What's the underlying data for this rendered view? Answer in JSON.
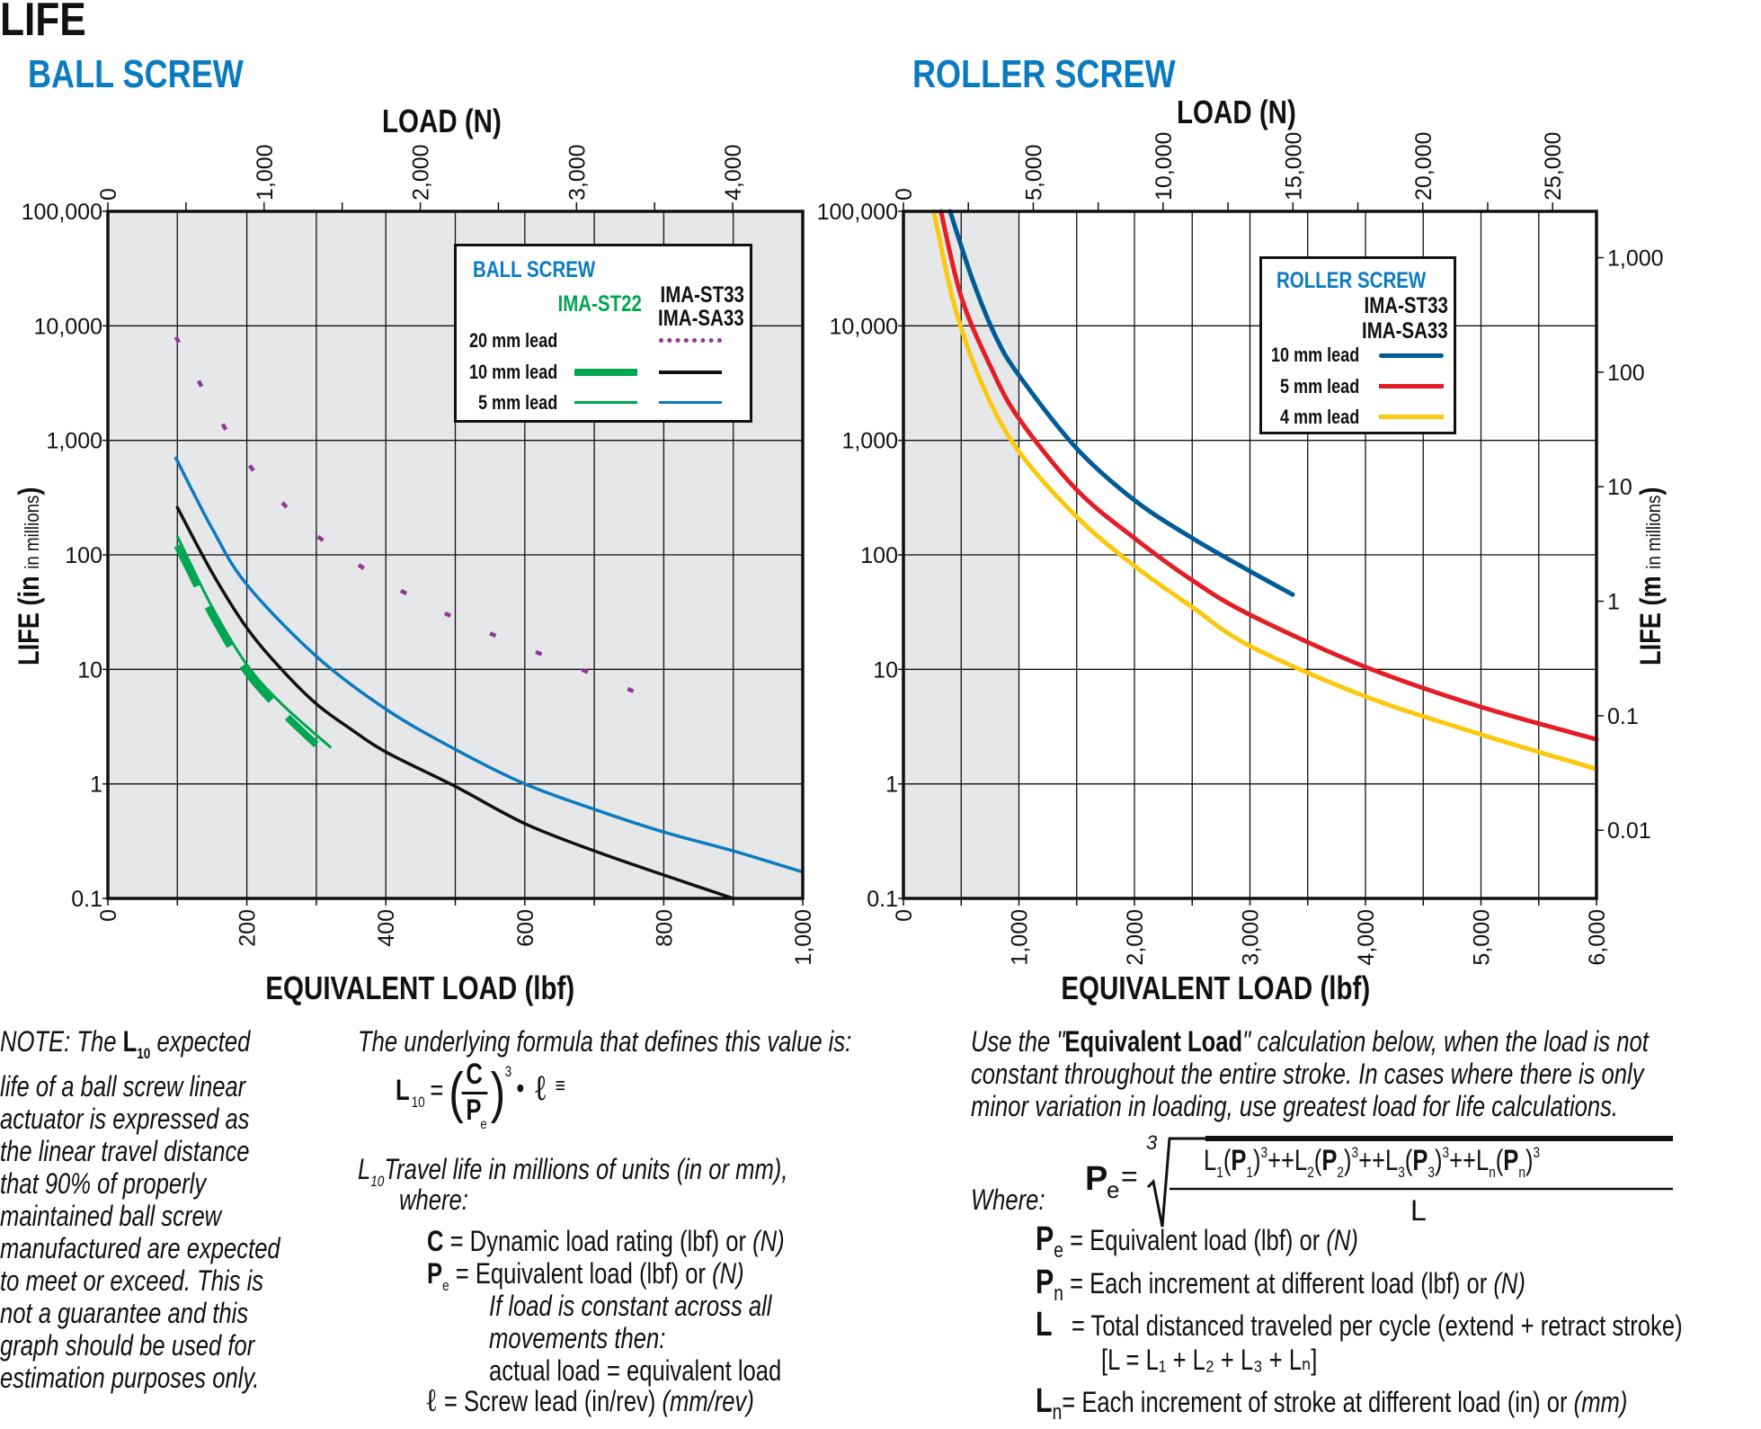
{
  "page_title": "LIFE",
  "sections": {
    "ball": "BALL SCREW",
    "roller": "ROLLER SCREW"
  },
  "axes": {
    "top_title": "LOAD (N)",
    "bottom_title": "EQUIVALENT LOAD (lbf)",
    "left_ylabel_main": "LIFE (in ",
    "left_ylabel_small": "in millions",
    "right_ylabel_main": "LIFE (m ",
    "right_ylabel_small": "in millions",
    "close_paren": ")"
  },
  "chart_data": [
    {
      "type": "line",
      "title": "BALL SCREW",
      "xlabel": "EQUIVALENT LOAD (lbf)",
      "x2label": "LOAD (N)",
      "ylabel": "LIFE (in in millions)",
      "xlim": [
        0,
        1000
      ],
      "ylim": [
        0.1,
        100000
      ],
      "yscale": "log",
      "grid": true,
      "x_ticks": [
        "0",
        "200",
        "400",
        "600",
        "800",
        "1,000"
      ],
      "x_tick_values": [
        0,
        200,
        400,
        600,
        800,
        1000
      ],
      "x2_ticks": [
        "0",
        "1,000",
        "2,000",
        "3,000",
        "4,000"
      ],
      "x2_tick_values": [
        0,
        1000,
        2000,
        3000,
        4000
      ],
      "y_ticks": [
        "0.1",
        "1",
        "10",
        "100",
        "1,000",
        "10,000",
        "100,000"
      ],
      "y_tick_values": [
        0.1,
        1,
        10,
        100,
        1000,
        10000,
        100000
      ],
      "legend": {
        "title": "BALL SCREW",
        "col1": "IMA-ST22",
        "col2a": "IMA-ST33",
        "col2b": "IMA-SA33",
        "rows": [
          "20 mm lead",
          "10 mm lead",
          "5 mm lead"
        ],
        "placement": "top-right"
      },
      "series": [
        {
          "name": "IMA-ST33/SA33 20 mm lead",
          "color": "#8e3a96",
          "style": "dotted",
          "x": [
            98,
            150,
            200,
            250,
            300,
            400,
            500,
            600,
            700,
            779
          ],
          "y": [
            8000,
            2000,
            650,
            290,
            148,
            58,
            28,
            15.5,
            9,
            5.6
          ]
        },
        {
          "name": "IMA-ST33/SA33 10 mm lead",
          "color": "#111111",
          "style": "solid",
          "x": [
            100,
            150,
            200,
            250,
            300,
            350,
            400,
            500,
            600,
            700,
            800,
            900
          ],
          "y": [
            260,
            70,
            23,
            10,
            5,
            3,
            1.9,
            0.95,
            0.45,
            0.26,
            0.16,
            0.1
          ]
        },
        {
          "name": "IMA-ST33/SA33 5 mm lead",
          "color": "#0a7bc1",
          "style": "solid",
          "x": [
            98,
            150,
            200,
            300,
            400,
            500,
            600,
            700,
            800,
            900,
            1000
          ],
          "y": [
            700,
            170,
            55,
            13,
            4.5,
            2,
            1,
            0.6,
            0.38,
            0.26,
            0.17
          ]
        },
        {
          "name": "IMA-ST22 5 mm lead",
          "color": "#00a651",
          "style": "solid",
          "x": [
            100,
            150,
            200,
            250,
            320
          ],
          "y": [
            145,
            35,
            11,
            5,
            2.1
          ]
        },
        {
          "name": "IMA-ST22 10 mm lead",
          "color": "#00a651",
          "style": "thick-dashed",
          "x": [
            100,
            150,
            200,
            250,
            300
          ],
          "y": [
            120,
            30,
            9.5,
            4.3,
            2.2
          ]
        }
      ]
    },
    {
      "type": "line",
      "title": "ROLLER SCREW",
      "xlabel": "EQUIVALENT LOAD (lbf)",
      "x2label": "LOAD (N)",
      "ylabel": "LIFE (in in millions)",
      "y2label": "LIFE (m in millions)",
      "xlim": [
        0,
        6000
      ],
      "ylim": [
        0.1,
        100000
      ],
      "yscale": "log",
      "grid": true,
      "shaded_region_lbf": [
        0,
        1000
      ],
      "x_ticks": [
        "0",
        "1,000",
        "2,000",
        "3,000",
        "4,000",
        "5,000",
        "6,000"
      ],
      "x_tick_values": [
        0,
        1000,
        2000,
        3000,
        4000,
        5000,
        6000
      ],
      "x2_ticks": [
        "0",
        "5,000",
        "10,000",
        "15,000",
        "20,000",
        "25,000"
      ],
      "x2_tick_values": [
        0,
        5000,
        10000,
        15000,
        20000,
        25000
      ],
      "y_ticks": [
        "0.1",
        "1",
        "10",
        "100",
        "1,000",
        "10,000",
        "100,000"
      ],
      "y_tick_values": [
        0.1,
        1,
        10,
        100,
        1000,
        10000,
        100000
      ],
      "y2_ticks": [
        "0.01",
        "0.1",
        "1",
        "10",
        "100",
        "1,000"
      ],
      "y2_tick_values": [
        0.01,
        0.1,
        1,
        10,
        100,
        1000
      ],
      "legend": {
        "title": "ROLLER SCREW",
        "col_a": "IMA-ST33",
        "col_b": "IMA-SA33",
        "rows": [
          "10 mm lead",
          "5 mm lead",
          "4 mm lead"
        ],
        "placement": "top-right"
      },
      "series": [
        {
          "name": "10 mm lead",
          "color": "#005b96",
          "x": [
            404,
            600,
            800,
            1000,
            1500,
            2000,
            2500,
            3000,
            3370
          ],
          "y": [
            100000,
            25000,
            8000,
            3700,
            850,
            300,
            140,
            72,
            45
          ]
        },
        {
          "name": "5 mm lead",
          "color": "#e31e26",
          "x": [
            325,
            500,
            750,
            1000,
            1500,
            2000,
            2500,
            3000,
            4000,
            5000,
            6000
          ],
          "y": [
            100000,
            18000,
            4500,
            1550,
            370,
            140,
            60,
            30,
            10.5,
            4.7,
            2.45
          ]
        },
        {
          "name": "4 mm lead",
          "color": "#fcc80e",
          "x": [
            262,
            450,
            700,
            1000,
            1500,
            2000,
            2500,
            3000,
            4000,
            5000,
            6000
          ],
          "y": [
            100000,
            14000,
            2800,
            800,
            215,
            80,
            35,
            16,
            5.8,
            2.7,
            1.35
          ]
        }
      ]
    }
  ],
  "note": {
    "l1a": "NOTE: The ",
    "l1b": "L",
    "l1sub": "10",
    "l1c": " expected",
    "lines": [
      "life of a ball screw linear",
      "actuator is expressed as",
      "the linear travel distance",
      "that 90% of properly",
      "maintained ball screw",
      "manufactured are expected",
      "to meet or exceed. This is",
      "not a guarantee and this",
      "graph should be used for",
      "estimation purposes only."
    ]
  },
  "formula": {
    "intro": "The underlying formula that defines this value is:",
    "L": "L",
    "sub10": "10",
    "eq": "=",
    "C": "C",
    "P": "P",
    "e": "e",
    "cube": "3",
    "dot": "•",
    "ell": "ℓ",
    "equiv": "≡",
    "def_a": "Travel life in millions of units (in or mm),",
    "def_b": "where:",
    "c_def": "= Dynamic load rating (lbf) or ",
    "n_unit": "(N)",
    "pe_def": "= Equivalent load (lbf) or ",
    "if1": "If load is constant across all",
    "if2": "movements then:",
    "actual": "actual load = equivalent load",
    "lead_def": "= Screw lead (in/rev) ",
    "lead_mm": "(mm/rev)"
  },
  "equiv": {
    "l1a": "Use the \"",
    "l1b": "Equivalent Load",
    "l1c": "\" calculation below, when the load is not",
    "l2": "constant throughout the entire stroke. In cases where there is only",
    "l3": "minor variation in loading, use greatest load for life calculations.",
    "where": "Where:",
    "root": "3",
    "numerator": [
      "L",
      "1",
      "(P",
      "1",
      ")",
      "3",
      "+L",
      "2",
      "(P",
      "2",
      ")",
      "3",
      "+L",
      "3",
      "(P",
      "3",
      ")",
      "3",
      "+L",
      "n",
      "(P",
      "n",
      ")",
      "3"
    ],
    "denominator": "L",
    "pe_def": "= Equivalent load (lbf) or ",
    "pn_def": "= Each increment at different load (lbf) or ",
    "l_def": "= Total distanced traveled per cycle (extend + retract stroke)",
    "l_sum": "[L = L₁ + L₂ + L₃ + Lₙ]",
    "ln_def": "= Each increment of stroke at different load (in) or ",
    "mm": "(mm)",
    "n": "n",
    "Lsym": "L",
    "Psym": "P",
    "e": "e",
    "N": "(N)",
    "peq": "="
  }
}
